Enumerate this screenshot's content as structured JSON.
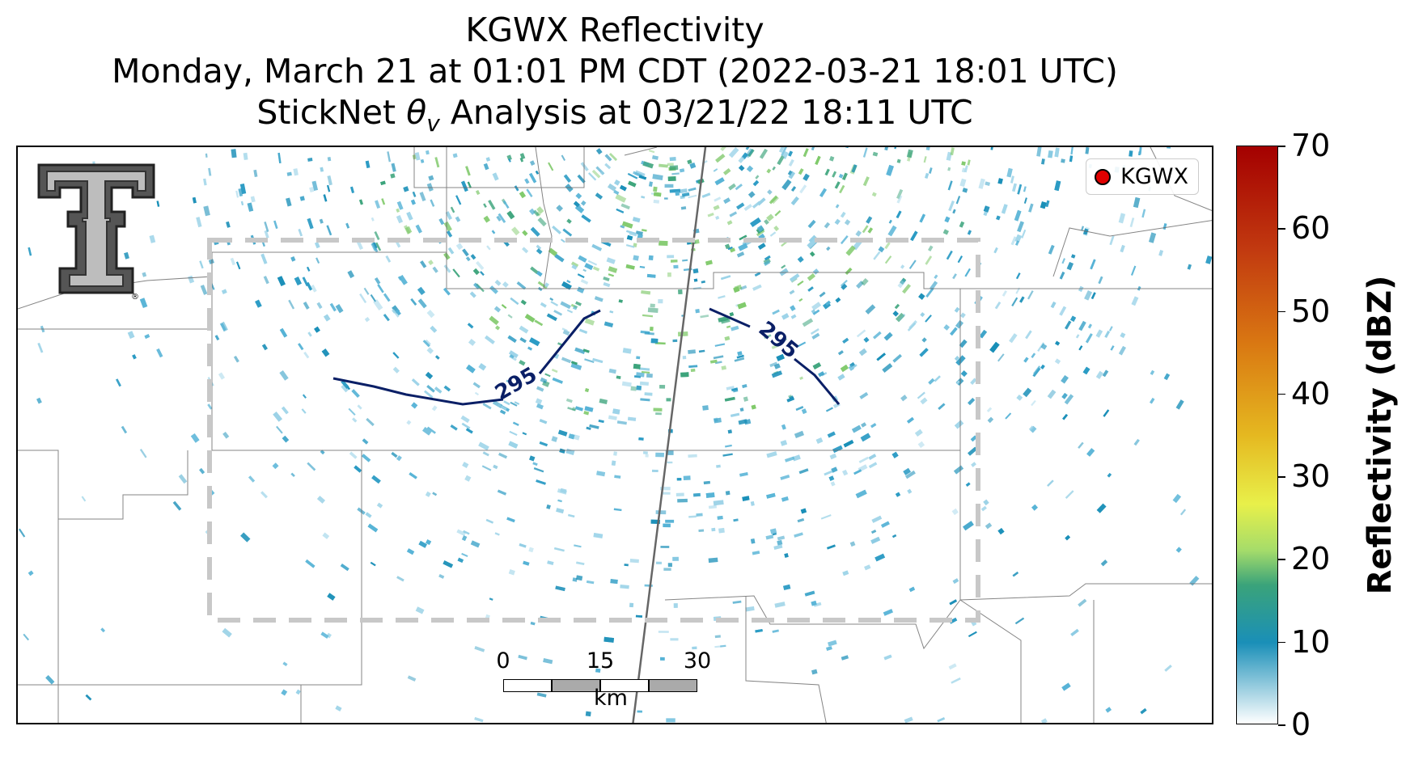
{
  "title": {
    "line1": "KGWX Reflectivity",
    "line2": "Monday, March 21 at 01:01 PM CDT (2022-03-21 18:01 UTC)",
    "line3_prefix": "StickNet ",
    "line3_symbol": "θ",
    "line3_subscript": "v",
    "line3_suffix": " Analysis at 03/21/22 18:11 UTC"
  },
  "legend": {
    "label": "KGWX",
    "marker_color": "#e00000"
  },
  "contours": [
    {
      "label": "295",
      "color": "#0a1f66"
    },
    {
      "label": "295",
      "color": "#0a1f66"
    }
  ],
  "scalebar": {
    "ticks": [
      "0",
      "15",
      "30"
    ],
    "unit": "km"
  },
  "colorbar": {
    "title": "Reflectivity (dBZ)",
    "ticks": [
      "0",
      "10",
      "20",
      "30",
      "40",
      "50",
      "60",
      "70"
    ],
    "min": 0,
    "max": 70
  },
  "colors": {
    "reflectivity_low": "#1a8fb8",
    "reflectivity_mid": "#3aa37a",
    "analysis_box": "#cccccc"
  }
}
